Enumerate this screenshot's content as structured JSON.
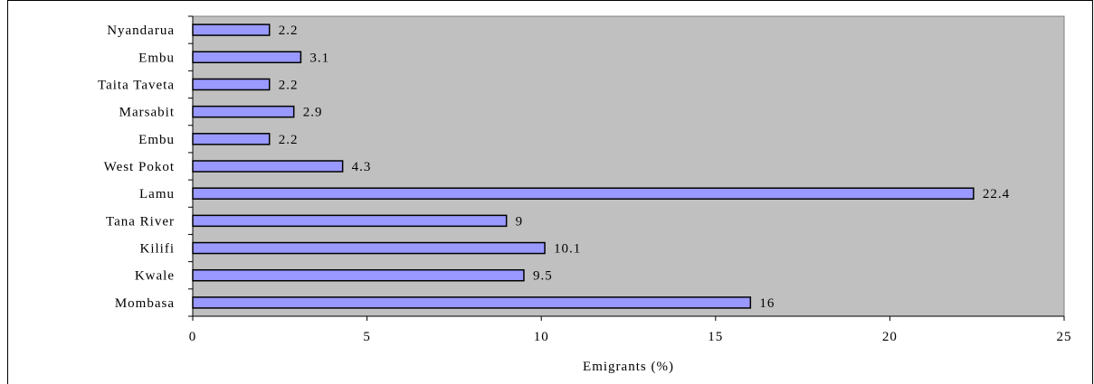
{
  "chart_data": {
    "type": "bar",
    "orientation": "horizontal",
    "categories": [
      "Mombasa",
      "Kwale",
      "Kilifi",
      "Tana River",
      "Lamu",
      "West Pokot",
      "Embu",
      "Marsabit",
      "Taita Taveta",
      "Embu",
      "Nyandarua"
    ],
    "values": [
      16,
      9.5,
      10.1,
      9,
      22.4,
      4.3,
      2.2,
      2.9,
      2.2,
      3.1,
      2.2
    ],
    "data_labels": [
      "16",
      "9.5",
      "10.1",
      "9",
      "22.4",
      "4.3",
      "2.2",
      "2.9",
      "2.2",
      "3.1",
      "2.2"
    ],
    "xlabel": "Emigrants (%)",
    "ylabel": "",
    "xlim": [
      0,
      25
    ],
    "xticks": [
      "0",
      "5",
      "10",
      "15",
      "20",
      "25"
    ],
    "grid": false,
    "legend": "none"
  },
  "colors": {
    "plot_background": "#c0c0c0",
    "bar_fill": "#9999ff",
    "bar_stroke": "#000000"
  }
}
